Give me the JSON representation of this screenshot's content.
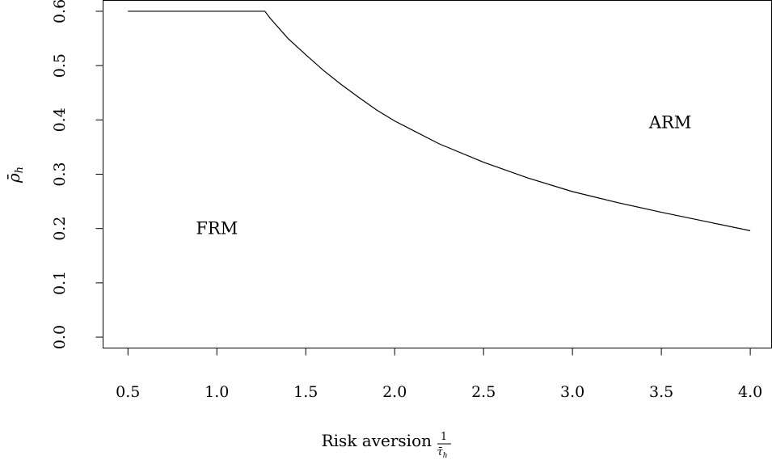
{
  "chart_data": {
    "type": "line",
    "xlabel": "Risk aversion",
    "xlabel_fraction": {
      "numerator": "1",
      "denominator": "τ̄",
      "denominator_sub": "h"
    },
    "ylabel": {
      "symbol": "ρ̄",
      "sub": "h"
    },
    "xlim": [
      0.36,
      4.12
    ],
    "ylim": [
      -0.02,
      0.62
    ],
    "x_ticks": [
      {
        "value": 0.5,
        "label": "0.5"
      },
      {
        "value": 1.0,
        "label": "1.0"
      },
      {
        "value": 1.5,
        "label": "1.5"
      },
      {
        "value": 2.0,
        "label": "2.0"
      },
      {
        "value": 2.5,
        "label": "2.5"
      },
      {
        "value": 3.0,
        "label": "3.0"
      },
      {
        "value": 3.5,
        "label": "3.5"
      },
      {
        "value": 4.0,
        "label": "4.0"
      }
    ],
    "y_ticks": [
      {
        "value": 0.0,
        "label": "0.0"
      },
      {
        "value": 0.1,
        "label": "0.1"
      },
      {
        "value": 0.2,
        "label": "0.2"
      },
      {
        "value": 0.3,
        "label": "0.3"
      },
      {
        "value": 0.4,
        "label": "0.4"
      },
      {
        "value": 0.5,
        "label": "0.5"
      },
      {
        "value": 0.6,
        "label": "0.6"
      }
    ],
    "series": [
      {
        "color": "#000000",
        "x": [
          0.5,
          0.75,
          1.0,
          1.27,
          1.3,
          1.4,
          1.5,
          1.6,
          1.7,
          1.8,
          1.9,
          2.0,
          2.25,
          2.5,
          2.75,
          3.0,
          3.25,
          3.5,
          3.75,
          4.0
        ],
        "y": [
          0.6,
          0.6,
          0.6,
          0.6,
          0.587,
          0.55,
          0.52,
          0.491,
          0.465,
          0.441,
          0.418,
          0.398,
          0.356,
          0.322,
          0.293,
          0.268,
          0.248,
          0.23,
          0.213,
          0.196
        ]
      }
    ],
    "annotations": [
      {
        "text": "FRM",
        "x": 1.0,
        "y": 0.2
      },
      {
        "text": "ARM",
        "x": 3.55,
        "y": 0.395
      }
    ],
    "grid": false,
    "legend": "none"
  }
}
